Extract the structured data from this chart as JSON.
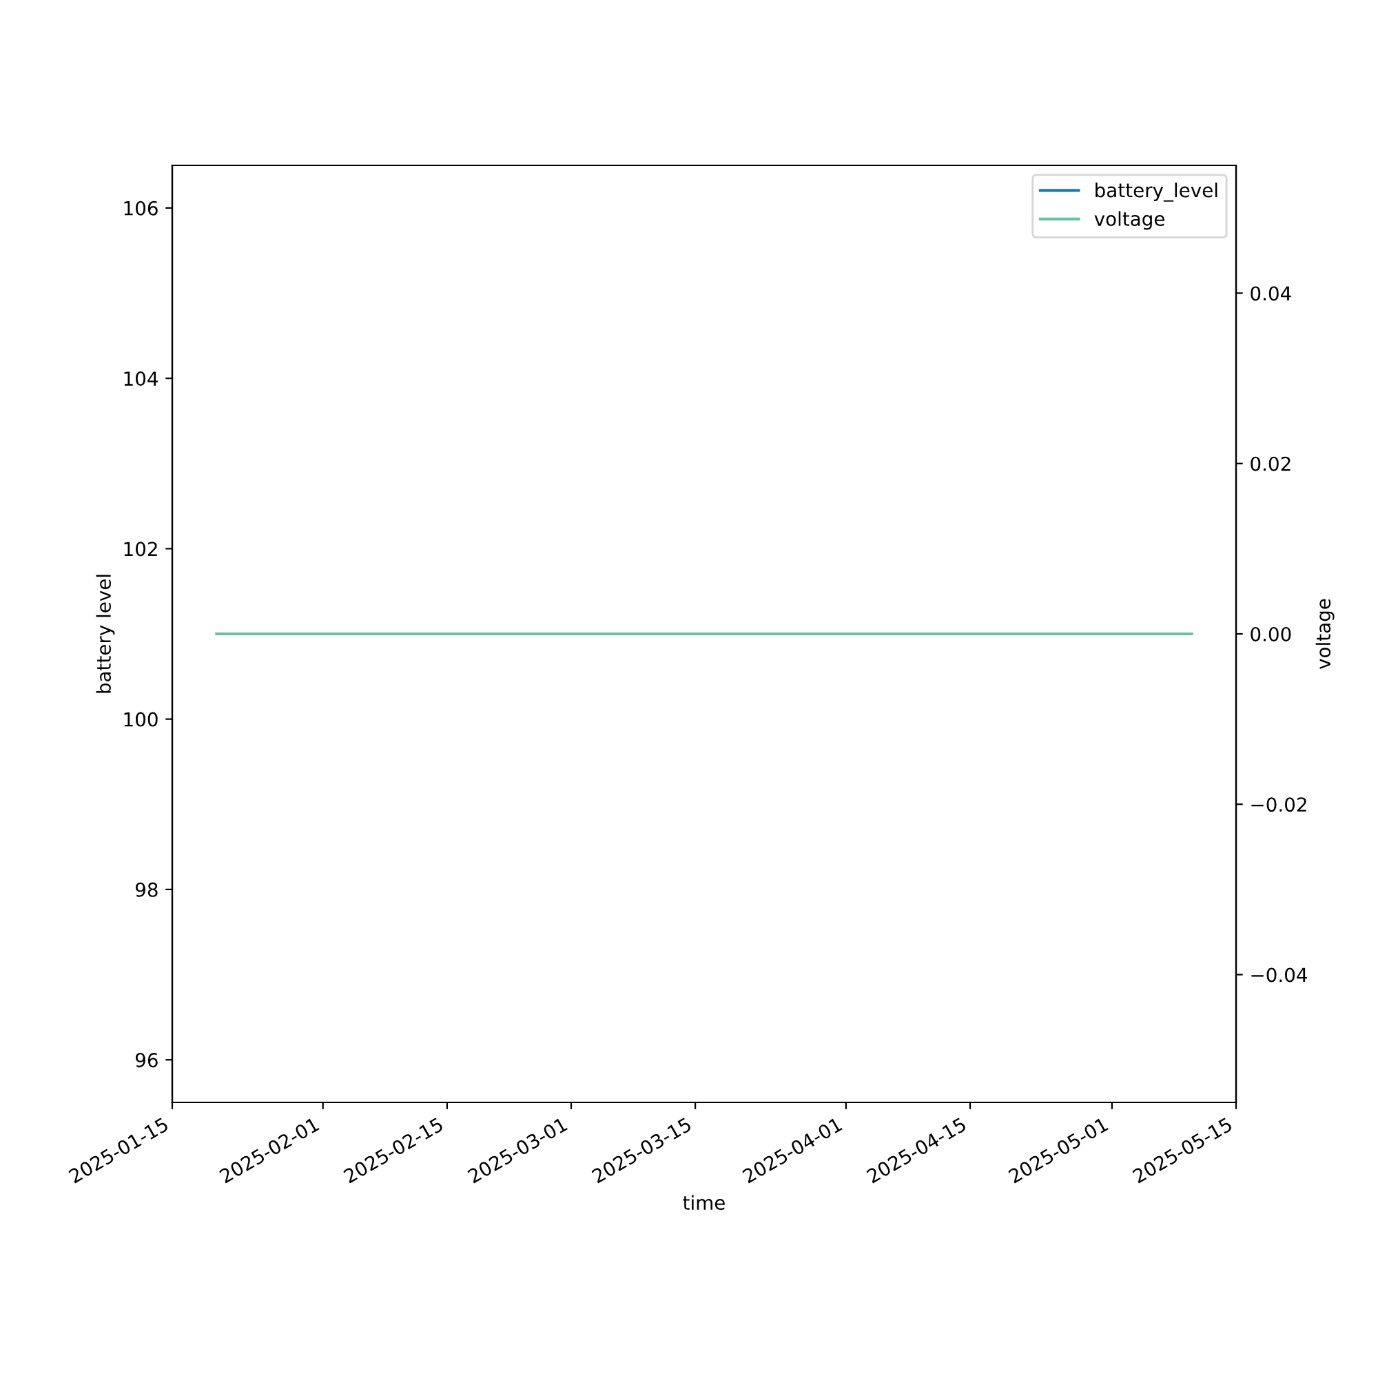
{
  "chart_data": {
    "type": "line",
    "xlabel": "time",
    "ylabel": "battery level",
    "y2label": "voltage",
    "x": [
      "2025-01-20",
      "2025-05-10"
    ],
    "series": [
      {
        "name": "battery_level",
        "color": "#1f77b4",
        "values": [
          null,
          null
        ]
      },
      {
        "name": "voltage",
        "color": "#66c2a5",
        "values": [
          0,
          0
        ],
        "axis": "y2"
      }
    ],
    "xlim": [
      "2025-01-15",
      "2025-05-15"
    ],
    "xticks": [
      "2025-01-15",
      "2025-02-01",
      "2025-02-15",
      "2025-03-01",
      "2025-03-15",
      "2025-04-01",
      "2025-04-15",
      "2025-05-01",
      "2025-05-15"
    ],
    "ylim": [
      95.5,
      106.5
    ],
    "yticks": [
      96,
      98,
      100,
      102,
      104,
      106
    ],
    "y2lim": [
      -0.055,
      0.055
    ],
    "y2ticks": [
      {
        "value": -0.04,
        "label": "−0.04"
      },
      {
        "value": -0.02,
        "label": "−0.02"
      },
      {
        "value": 0,
        "label": "0.00"
      },
      {
        "value": 0.02,
        "label": "0.02"
      },
      {
        "value": 0.04,
        "label": "0.04"
      }
    ],
    "legend": "top right",
    "grid": false,
    "line_style": "solid",
    "marker": "none"
  }
}
